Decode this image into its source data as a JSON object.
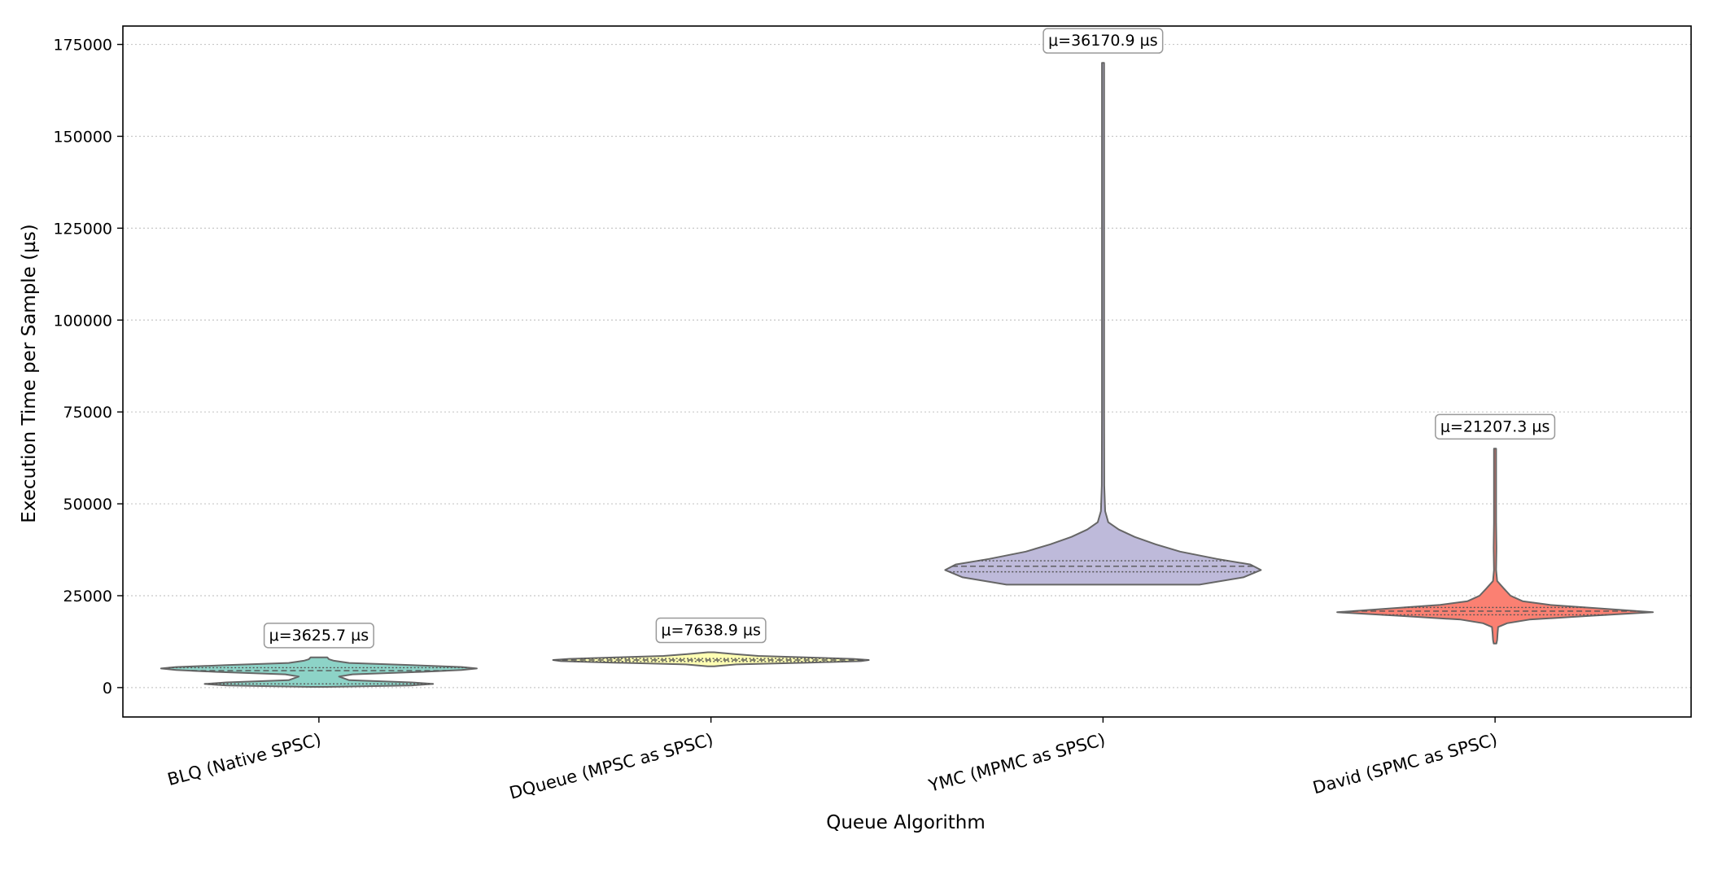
{
  "chart_data": {
    "type": "violin",
    "title": "",
    "xlabel": "Queue Algorithm",
    "ylabel": "Execution Time per Sample (µs)",
    "ylim": [
      -8000,
      180000
    ],
    "yticks": [
      0,
      25000,
      50000,
      75000,
      100000,
      125000,
      150000,
      175000
    ],
    "grid": "y, dotted",
    "categories": [
      "BLQ (Native SPSC)",
      "DQueue (MPSC as SPSC)",
      "YMC (MPMC as SPSC)",
      "David (SPMC as SPSC)"
    ],
    "series": [
      {
        "category": "BLQ (Native SPSC)",
        "color": "#8dd3c7",
        "mean_label": "μ=3625.7 µs",
        "mean": 3625.7,
        "min": 200,
        "max": 8200,
        "quartiles": [
          1000,
          4600,
          5400
        ],
        "density": [
          [
            200,
            0.05
          ],
          [
            600,
            0.55
          ],
          [
            1000,
            0.68
          ],
          [
            1400,
            0.55
          ],
          [
            2000,
            0.18
          ],
          [
            3000,
            0.12
          ],
          [
            3600,
            0.2
          ],
          [
            4300,
            0.62
          ],
          [
            4800,
            0.85
          ],
          [
            5200,
            0.94
          ],
          [
            5600,
            0.85
          ],
          [
            6100,
            0.55
          ],
          [
            6700,
            0.18
          ],
          [
            7300,
            0.09
          ],
          [
            7700,
            0.06
          ],
          [
            8200,
            0.05
          ]
        ]
      },
      {
        "category": "DQueue (MPSC as SPSC)",
        "color": "#ffffb3",
        "mean_label": "μ=7638.9 µs",
        "mean": 7638.9,
        "min": 5800,
        "max": 9600,
        "quartiles": [
          7100,
          7500,
          7900
        ],
        "density": [
          [
            5800,
            0.02
          ],
          [
            6300,
            0.16
          ],
          [
            6800,
            0.62
          ],
          [
            7200,
            0.95
          ],
          [
            7500,
            1.0
          ],
          [
            7800,
            0.9
          ],
          [
            8200,
            0.6
          ],
          [
            8600,
            0.3
          ],
          [
            9100,
            0.15
          ],
          [
            9600,
            0.02
          ]
        ]
      },
      {
        "category": "YMC (MPMC as SPSC)",
        "color": "#bebada",
        "mean_label": "μ=36170.9 µs",
        "mean": 36170.9,
        "min": 28000,
        "max": 170000,
        "quartiles": [
          31500,
          33000,
          34500
        ],
        "density": [
          [
            28000,
            0.55
          ],
          [
            30000,
            0.8
          ],
          [
            32000,
            0.9
          ],
          [
            33500,
            0.84
          ],
          [
            35000,
            0.65
          ],
          [
            37000,
            0.44
          ],
          [
            39000,
            0.3
          ],
          [
            41000,
            0.18
          ],
          [
            43000,
            0.09
          ],
          [
            45000,
            0.03
          ],
          [
            48000,
            0.012
          ],
          [
            55000,
            0.007
          ],
          [
            75000,
            0.006
          ],
          [
            90000,
            0.004
          ],
          [
            100000,
            0.006
          ],
          [
            110000,
            0.004
          ],
          [
            120000,
            0.002
          ],
          [
            140000,
            0.002
          ],
          [
            160000,
            0.002
          ],
          [
            170000,
            0.001
          ]
        ]
      },
      {
        "category": "David (SPMC as SPSC)",
        "color": "#fb8072",
        "mean_label": "μ=21207.3 µs",
        "mean": 21207.3,
        "min": 12000,
        "max": 65000,
        "quartiles": [
          19800,
          20800,
          21800
        ],
        "density": [
          [
            12000,
            0.008
          ],
          [
            13000,
            0.012
          ],
          [
            15000,
            0.015
          ],
          [
            16500,
            0.018
          ],
          [
            17500,
            0.07
          ],
          [
            18500,
            0.2
          ],
          [
            19500,
            0.55
          ],
          [
            20500,
            0.92
          ],
          [
            21500,
            0.62
          ],
          [
            22500,
            0.32
          ],
          [
            23500,
            0.16
          ],
          [
            25000,
            0.09
          ],
          [
            27000,
            0.05
          ],
          [
            29000,
            0.012
          ],
          [
            32000,
            0.006
          ],
          [
            38000,
            0.008
          ],
          [
            45000,
            0.004
          ],
          [
            55000,
            0.003
          ],
          [
            65000,
            0.002
          ]
        ]
      }
    ]
  }
}
